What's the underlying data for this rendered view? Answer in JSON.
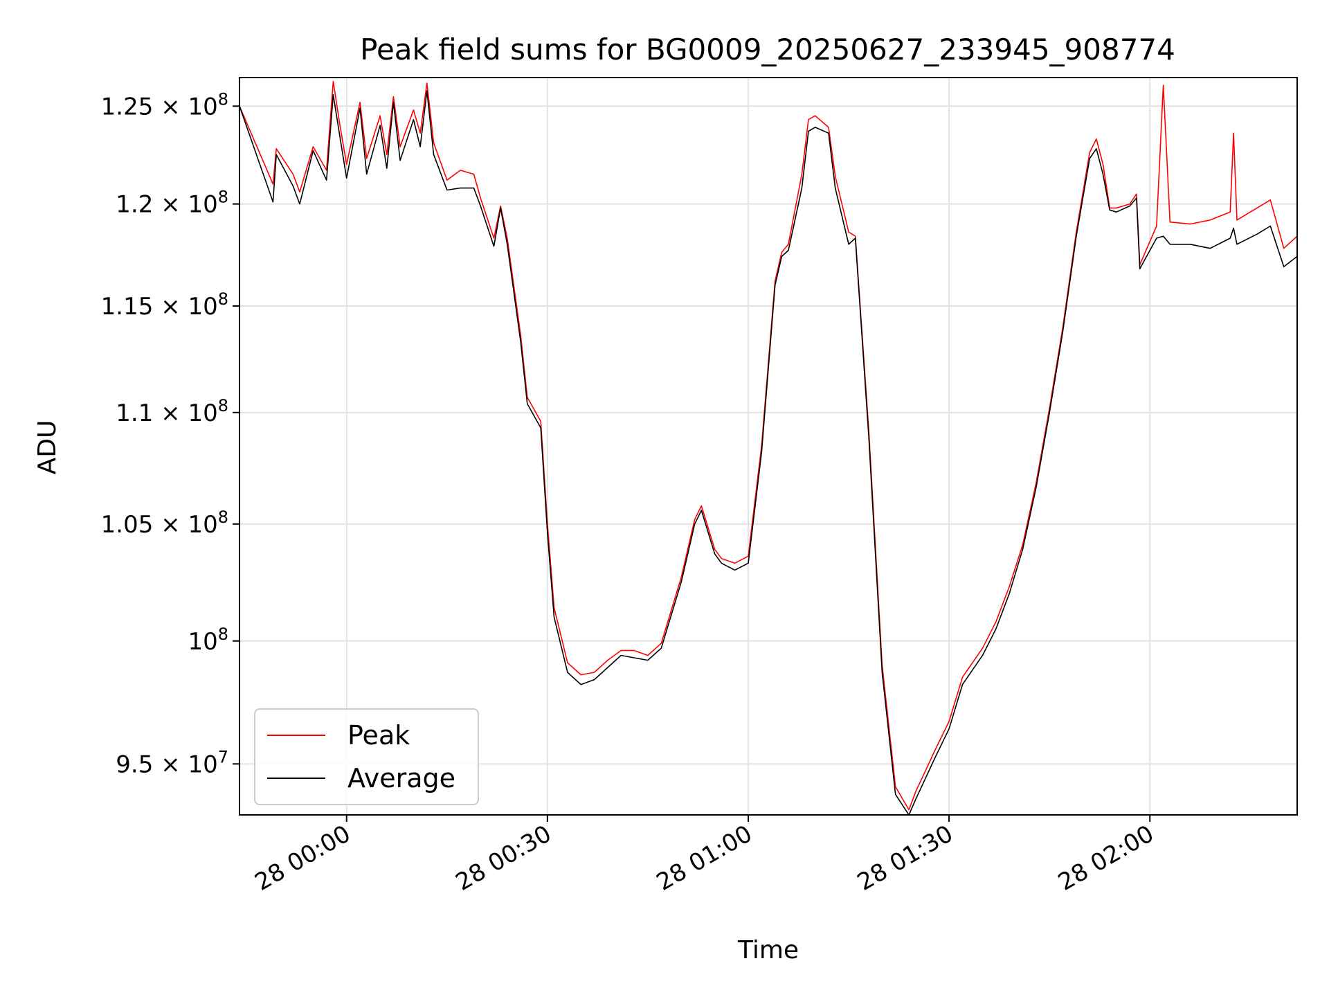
{
  "chart_data": {
    "type": "line",
    "title": "Peak field sums for BG0009_20250627_233945_908774",
    "xlabel": "Time",
    "ylabel": "ADU",
    "y_scale": "log",
    "x_unit": "time (day 28, HH:MM)",
    "xlim": [
      "27 23:44",
      "28 02:22"
    ],
    "ylim": [
      93000000,
      126500000
    ],
    "x_ticks": [
      {
        "value": "28 00:00",
        "label": "28 00:00"
      },
      {
        "value": "28 00:30",
        "label": "28 00:30"
      },
      {
        "value": "28 01:00",
        "label": "28 01:00"
      },
      {
        "value": "28 01:30",
        "label": "28 01:30"
      },
      {
        "value": "28 02:00",
        "label": "28 02:00"
      }
    ],
    "y_ticks": [
      {
        "value": 125000000,
        "mantissa": "1.25",
        "exp": "8"
      },
      {
        "value": 120000000,
        "mantissa": "1.2",
        "exp": "8"
      },
      {
        "value": 115000000,
        "mantissa": "1.15",
        "exp": "8"
      },
      {
        "value": 110000000,
        "mantissa": "1.1",
        "exp": "8"
      },
      {
        "value": 105000000,
        "mantissa": "1.05",
        "exp": "8"
      },
      {
        "value": 100000000,
        "mantissa": "",
        "exp": "8"
      },
      {
        "value": 95000000,
        "mantissa": "9.5",
        "exp": "7"
      }
    ],
    "grid": true,
    "legend_position": "lower-left",
    "series": [
      {
        "name": "Peak",
        "color": "#ff0000",
        "points": [
          [
            "27 23:44",
            125000000
          ],
          [
            "27 23:49",
            121000000
          ],
          [
            "27 23:49:30",
            122800000
          ],
          [
            "27 23:52",
            121500000
          ],
          [
            "27 23:53",
            120600000
          ],
          [
            "27 23:55",
            122900000
          ],
          [
            "27 23:57",
            121700000
          ],
          [
            "27 23:58",
            126300000
          ],
          [
            "27 23:59",
            124000000
          ],
          [
            "28 00:00",
            122000000
          ],
          [
            "28 00:02",
            125200000
          ],
          [
            "28 00:03",
            122300000
          ],
          [
            "28 00:05",
            124500000
          ],
          [
            "28 00:06",
            122500000
          ],
          [
            "28 00:07",
            125500000
          ],
          [
            "28 00:08",
            122900000
          ],
          [
            "28 00:10",
            124800000
          ],
          [
            "28 00:11",
            123600000
          ],
          [
            "28 00:12",
            126200000
          ],
          [
            "28 00:13",
            123100000
          ],
          [
            "28 00:15",
            121200000
          ],
          [
            "28 00:17",
            121700000
          ],
          [
            "28 00:19",
            121500000
          ],
          [
            "28 00:20",
            120300000
          ],
          [
            "28 00:22",
            118300000
          ],
          [
            "28 00:23",
            119900000
          ],
          [
            "28 00:24",
            118300000
          ],
          [
            "28 00:26",
            113600000
          ],
          [
            "28 00:27",
            110700000
          ],
          [
            "28 00:29",
            109600000
          ],
          [
            "28 00:30",
            105000000
          ],
          [
            "28 00:31",
            101400000
          ],
          [
            "28 00:33",
            99100000
          ],
          [
            "28 00:35",
            98600000
          ],
          [
            "28 00:37",
            98700000
          ],
          [
            "28 00:39",
            99200000
          ],
          [
            "28 00:41",
            99600000
          ],
          [
            "28 00:43",
            99600000
          ],
          [
            "28 00:45",
            99400000
          ],
          [
            "28 00:47",
            99900000
          ],
          [
            "28 00:50",
            102700000
          ],
          [
            "28 00:52",
            105200000
          ],
          [
            "28 00:53",
            105800000
          ],
          [
            "28 00:55",
            103900000
          ],
          [
            "28 00:56",
            103500000
          ],
          [
            "28 00:58",
            103300000
          ],
          [
            "28 01:00",
            103600000
          ],
          [
            "28 01:02",
            108500000
          ],
          [
            "28 01:04",
            116200000
          ],
          [
            "28 01:05",
            117600000
          ],
          [
            "28 01:06",
            118000000
          ],
          [
            "28 01:08",
            121500000
          ],
          [
            "28 01:09",
            124300000
          ],
          [
            "28 01:10",
            124500000
          ],
          [
            "28 01:12",
            123900000
          ],
          [
            "28 01:13",
            121400000
          ],
          [
            "28 01:15",
            118600000
          ],
          [
            "28 01:16",
            118400000
          ],
          [
            "28 01:18",
            109200000
          ],
          [
            "28 01:20",
            99000000
          ],
          [
            "28 01:22",
            94100000
          ],
          [
            "28 01:24",
            93200000
          ],
          [
            "28 01:25",
            93900000
          ],
          [
            "28 01:28",
            95600000
          ],
          [
            "28 01:30",
            96700000
          ],
          [
            "28 01:32",
            98500000
          ],
          [
            "28 01:35",
            99700000
          ],
          [
            "28 01:37",
            100800000
          ],
          [
            "28 01:39",
            102300000
          ],
          [
            "28 01:41",
            104100000
          ],
          [
            "28 01:43",
            106800000
          ],
          [
            "28 01:45",
            110200000
          ],
          [
            "28 01:47",
            114000000
          ],
          [
            "28 01:49",
            118600000
          ],
          [
            "28 01:51",
            122600000
          ],
          [
            "28 01:52",
            123300000
          ],
          [
            "28 01:53",
            122000000
          ],
          [
            "28 01:54",
            119800000
          ],
          [
            "28 01:55",
            119800000
          ],
          [
            "28 01:57",
            120000000
          ],
          [
            "28 01:58",
            120500000
          ],
          [
            "28 01:58:30",
            117000000
          ],
          [
            "28 02:01",
            118900000
          ],
          [
            "28 02:02",
            126100000
          ],
          [
            "28 02:03",
            119100000
          ],
          [
            "28 02:06",
            119000000
          ],
          [
            "28 02:09",
            119200000
          ],
          [
            "28 02:12",
            119600000
          ],
          [
            "28 02:12:30",
            123600000
          ],
          [
            "28 02:13",
            119200000
          ],
          [
            "28 02:16",
            119800000
          ],
          [
            "28 02:18",
            120200000
          ],
          [
            "28 02:20",
            117800000
          ],
          [
            "28 02:22",
            118400000
          ]
        ]
      },
      {
        "name": "Average",
        "color": "#000000",
        "points": [
          [
            "27 23:44",
            125000000
          ],
          [
            "27 23:49",
            120100000
          ],
          [
            "27 23:49:30",
            122500000
          ],
          [
            "27 23:52",
            120900000
          ],
          [
            "27 23:53",
            120000000
          ],
          [
            "27 23:55",
            122700000
          ],
          [
            "27 23:57",
            121200000
          ],
          [
            "27 23:58",
            125600000
          ],
          [
            "27 23:59",
            123400000
          ],
          [
            "28 00:00",
            121300000
          ],
          [
            "28 00:02",
            124900000
          ],
          [
            "28 00:03",
            121500000
          ],
          [
            "28 00:05",
            124000000
          ],
          [
            "28 00:06",
            121800000
          ],
          [
            "28 00:07",
            125200000
          ],
          [
            "28 00:08",
            122200000
          ],
          [
            "28 00:10",
            124300000
          ],
          [
            "28 00:11",
            122900000
          ],
          [
            "28 00:12",
            125800000
          ],
          [
            "28 00:13",
            122500000
          ],
          [
            "28 00:15",
            120700000
          ],
          [
            "28 00:17",
            120800000
          ],
          [
            "28 00:19",
            120800000
          ],
          [
            "28 00:20",
            119900000
          ],
          [
            "28 00:22",
            117900000
          ],
          [
            "28 00:23",
            119800000
          ],
          [
            "28 00:24",
            118000000
          ],
          [
            "28 00:26",
            113300000
          ],
          [
            "28 00:27",
            110400000
          ],
          [
            "28 00:29",
            109300000
          ],
          [
            "28 00:30",
            104600000
          ],
          [
            "28 00:31",
            101000000
          ],
          [
            "28 00:33",
            98700000
          ],
          [
            "28 00:35",
            98200000
          ],
          [
            "28 00:37",
            98400000
          ],
          [
            "28 00:39",
            98900000
          ],
          [
            "28 00:41",
            99400000
          ],
          [
            "28 00:43",
            99300000
          ],
          [
            "28 00:45",
            99200000
          ],
          [
            "28 00:47",
            99700000
          ],
          [
            "28 00:50",
            102500000
          ],
          [
            "28 00:52",
            105000000
          ],
          [
            "28 00:53",
            105600000
          ],
          [
            "28 00:55",
            103700000
          ],
          [
            "28 00:56",
            103300000
          ],
          [
            "28 00:58",
            103000000
          ],
          [
            "28 01:00",
            103300000
          ],
          [
            "28 01:02",
            108200000
          ],
          [
            "28 01:04",
            116000000
          ],
          [
            "28 01:05",
            117400000
          ],
          [
            "28 01:06",
            117700000
          ],
          [
            "28 01:08",
            120800000
          ],
          [
            "28 01:09",
            123700000
          ],
          [
            "28 01:10",
            123900000
          ],
          [
            "28 01:12",
            123600000
          ],
          [
            "28 01:13",
            120800000
          ],
          [
            "28 01:15",
            118000000
          ],
          [
            "28 01:16",
            118300000
          ],
          [
            "28 01:18",
            108900000
          ],
          [
            "28 01:20",
            98700000
          ],
          [
            "28 01:22",
            93800000
          ],
          [
            "28 01:24",
            93000000
          ],
          [
            "28 01:25",
            93600000
          ],
          [
            "28 01:28",
            95300000
          ],
          [
            "28 01:30",
            96400000
          ],
          [
            "28 01:32",
            98200000
          ],
          [
            "28 01:35",
            99400000
          ],
          [
            "28 01:37",
            100500000
          ],
          [
            "28 01:39",
            102000000
          ],
          [
            "28 01:41",
            103900000
          ],
          [
            "28 01:43",
            106600000
          ],
          [
            "28 01:45",
            110000000
          ],
          [
            "28 01:47",
            113800000
          ],
          [
            "28 01:49",
            118400000
          ],
          [
            "28 01:51",
            122300000
          ],
          [
            "28 01:52",
            122800000
          ],
          [
            "28 01:53",
            121500000
          ],
          [
            "28 01:54",
            119700000
          ],
          [
            "28 01:55",
            119600000
          ],
          [
            "28 01:57",
            119900000
          ],
          [
            "28 01:58",
            120300000
          ],
          [
            "28 01:58:30",
            116800000
          ],
          [
            "28 02:01",
            118300000
          ],
          [
            "28 02:02",
            118400000
          ],
          [
            "28 02:03",
            118000000
          ],
          [
            "28 02:06",
            118000000
          ],
          [
            "28 02:09",
            117800000
          ],
          [
            "28 02:12",
            118300000
          ],
          [
            "28 02:12:30",
            118800000
          ],
          [
            "28 02:13",
            118000000
          ],
          [
            "28 02:16",
            118500000
          ],
          [
            "28 02:18",
            118900000
          ],
          [
            "28 02:20",
            116900000
          ],
          [
            "28 02:22",
            117400000
          ]
        ]
      }
    ]
  }
}
